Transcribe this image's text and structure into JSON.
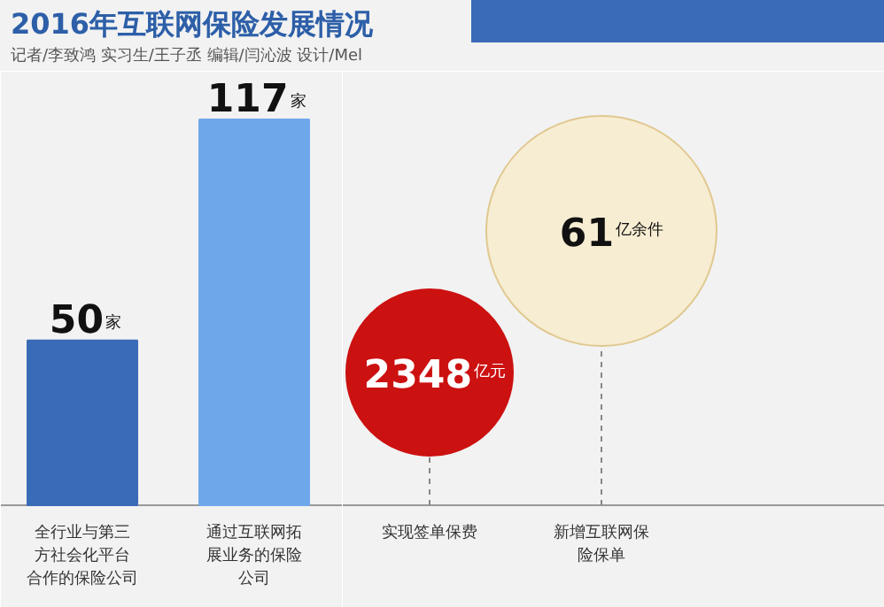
{
  "chart_data": [
    {
      "type": "bar",
      "title": "2016年互联网保险发展情况",
      "subtitle": "记者/李致鸿 实习生/王子丞 编辑/闫沁波 设计/Mel",
      "categories": [
        "全行业与第三方社会化平台合作的保险公司",
        "通过互联网拓展业务的保险公司"
      ],
      "values": [
        50,
        117
      ],
      "colors": [
        "#3a6bb8",
        "#6fa8ea"
      ],
      "value_labels": [
        "50家",
        "117家"
      ]
    },
    {
      "type": "other",
      "categories": [
        "实现签单保费",
        "新增互联网保险保单"
      ],
      "values": [
        2348,
        61
      ],
      "colors": [
        "#cc1111",
        "#f7edd2"
      ],
      "value_labels": [
        "2348亿元",
        "61亿余件"
      ]
    }
  ]
}
